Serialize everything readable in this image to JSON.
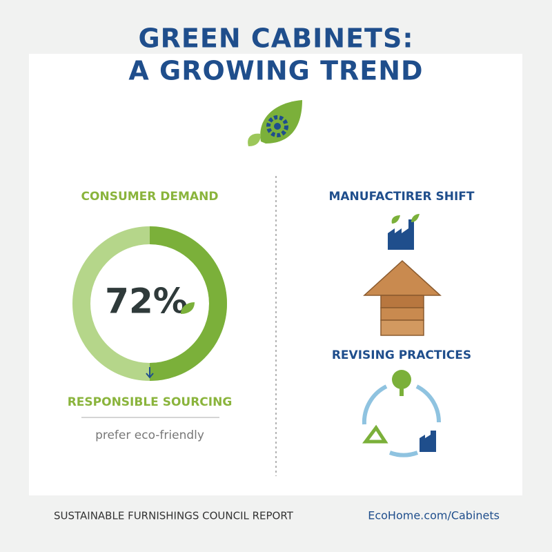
{
  "header": {
    "title_lines": [
      "GREEN CABINETS:",
      "A GROWING TREND"
    ]
  },
  "left": {
    "heading": "CONSUMER DEMAND",
    "stat": "72%",
    "label": "RESPONSIBLE SOURCING",
    "caption": "prefer eco-friendly"
  },
  "right": {
    "heading": "MANUFACTIRER SHIFT",
    "subheading": "REVISING PRACTICES"
  },
  "footer": {
    "source": "SUSTAINABLE FURNISHINGS COUNCIL REPORT",
    "link": "EcoHome.com/Cabinets"
  }
}
